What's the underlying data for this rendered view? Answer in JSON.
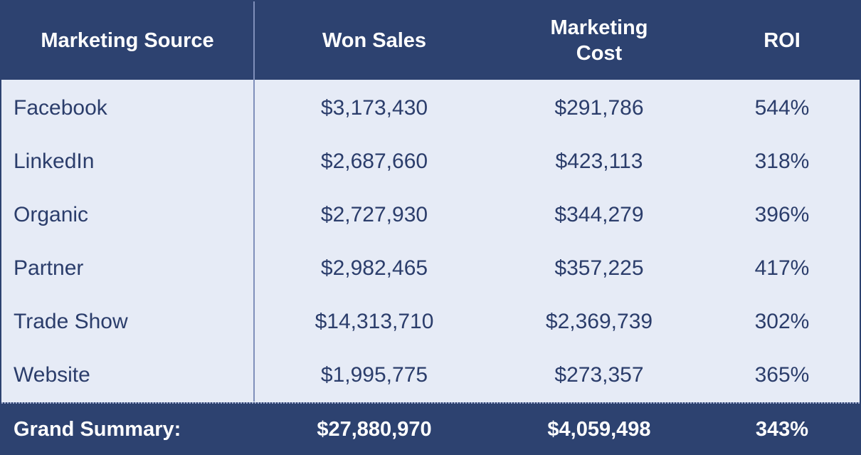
{
  "colors": {
    "header_bg": "#2d4270",
    "body_bg": "#e6ebf6",
    "body_text": "#2b3d6b",
    "header_text": "#ffffff"
  },
  "chart_data": {
    "type": "table",
    "columns": [
      "Marketing Source",
      "Won Sales",
      "Marketing Cost",
      "ROI"
    ],
    "rows": [
      [
        "Facebook",
        "$3,173,430",
        "$291,786",
        "544%"
      ],
      [
        "LinkedIn",
        "$2,687,660",
        "$423,113",
        "318%"
      ],
      [
        "Organic",
        "$2,727,930",
        "$344,279",
        "396%"
      ],
      [
        "Partner",
        "$2,982,465",
        "$357,225",
        "417%"
      ],
      [
        "Trade Show",
        "$14,313,710",
        "$2,369,739",
        "302%"
      ],
      [
        "Website",
        "$1,995,775",
        "$273,357",
        "365%"
      ]
    ],
    "summary": [
      "Grand Summary:",
      "$27,880,970",
      "$4,059,498",
      "343%"
    ]
  },
  "header": {
    "col0": "Marketing Source",
    "col1": "Won Sales",
    "col2_line1": "Marketing",
    "col2_line2": "Cost",
    "col3": "ROI"
  }
}
